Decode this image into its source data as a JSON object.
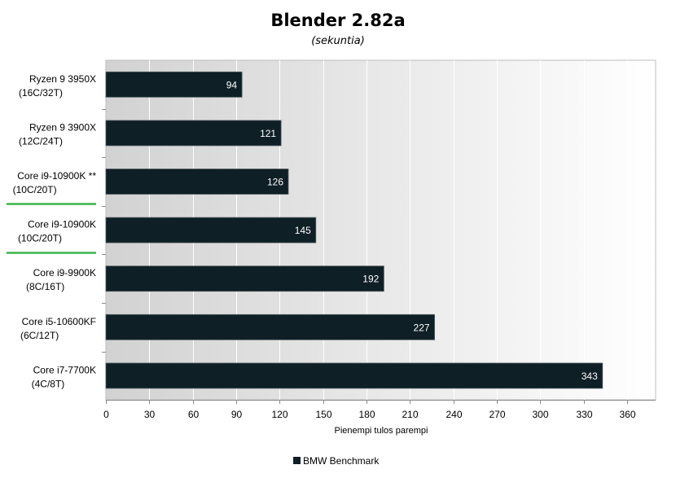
{
  "colors": {
    "bar": "#0e1f26",
    "highlight": "#3cb44b",
    "grid": "#ffffff",
    "plot_gradient_left": "#d2d2d2",
    "plot_gradient_right": "#ffffff"
  },
  "chart_data": {
    "type": "bar",
    "orientation": "horizontal",
    "title": "Blender 2.82a",
    "subtitle": "(sekuntia)",
    "xlabel": "Pienempi tulos parempi",
    "ylabel": "",
    "xlim": [
      0,
      360
    ],
    "xticks": [
      0,
      30,
      60,
      90,
      120,
      150,
      180,
      210,
      240,
      270,
      300,
      330,
      360
    ],
    "grid": true,
    "legend_position": "bottom",
    "categories": [
      {
        "line1": "Ryzen 9 3950X",
        "line2": "(16C/32T)",
        "highlighted": false
      },
      {
        "line1": "Ryzen 9 3900X",
        "line2": "(12C/24T)",
        "highlighted": false
      },
      {
        "line1": "Core i9-10900K **",
        "line2": "(10C/20T)",
        "highlighted": true
      },
      {
        "line1": "Core i9-10900K",
        "line2": "(10C/20T)",
        "highlighted": true
      },
      {
        "line1": "Core i9-9900K",
        "line2": "(8C/16T)",
        "highlighted": false
      },
      {
        "line1": "Core i5-10600KF",
        "line2": "(6C/12T)",
        "highlighted": false
      },
      {
        "line1": "Core i7-7700K",
        "line2": "(4C/8T)",
        "highlighted": false
      }
    ],
    "series": [
      {
        "name": "BMW Benchmark",
        "values": [
          94,
          121,
          126,
          145,
          192,
          227,
          343
        ]
      }
    ]
  }
}
